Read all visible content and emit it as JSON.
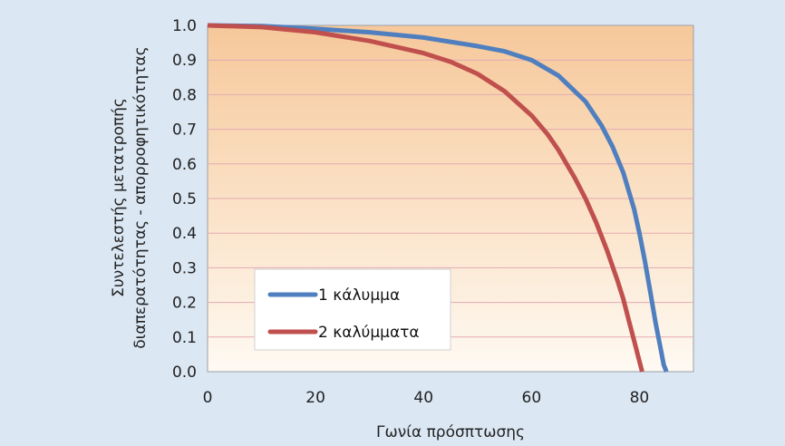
{
  "chart_data": {
    "type": "line",
    "xlabel": "Γωνία πρόσπτωσης",
    "ylabel_lines": [
      "Συντελεστής μετατροπής",
      "διαπερατότητας - απορροφητικότητας"
    ],
    "xlim": [
      0,
      90
    ],
    "ylim": [
      0,
      1.0
    ],
    "x_ticks": [
      "0",
      "20",
      "40",
      "60",
      "80"
    ],
    "y_ticks": [
      "0.0",
      "0.1",
      "0.2",
      "0.3",
      "0.4",
      "0.5",
      "0.6",
      "0.7",
      "0.8",
      "0.9",
      "1.0"
    ],
    "grid": true,
    "legend_position": "lower-left",
    "series": [
      {
        "name": "1 κάλυμμα",
        "color": "#4f7fbf",
        "x": [
          0,
          10,
          20,
          30,
          40,
          50,
          55,
          60,
          65,
          70,
          73,
          75,
          77,
          79,
          80,
          81,
          82,
          83,
          84,
          84.5,
          85
        ],
        "y": [
          1.0,
          0.998,
          0.99,
          0.98,
          0.965,
          0.94,
          0.925,
          0.9,
          0.855,
          0.78,
          0.71,
          0.65,
          0.575,
          0.47,
          0.4,
          0.32,
          0.23,
          0.14,
          0.06,
          0.02,
          0.0
        ]
      },
      {
        "name": "2 καλύμματα",
        "color": "#c0504d",
        "x": [
          0,
          10,
          20,
          30,
          40,
          45,
          50,
          55,
          60,
          63,
          65,
          68,
          70,
          72,
          74,
          76,
          77,
          78,
          79,
          80,
          80.5
        ],
        "y": [
          1.0,
          0.995,
          0.98,
          0.955,
          0.92,
          0.895,
          0.86,
          0.81,
          0.74,
          0.685,
          0.64,
          0.56,
          0.5,
          0.43,
          0.35,
          0.26,
          0.21,
          0.15,
          0.09,
          0.03,
          0.0
        ]
      }
    ]
  }
}
